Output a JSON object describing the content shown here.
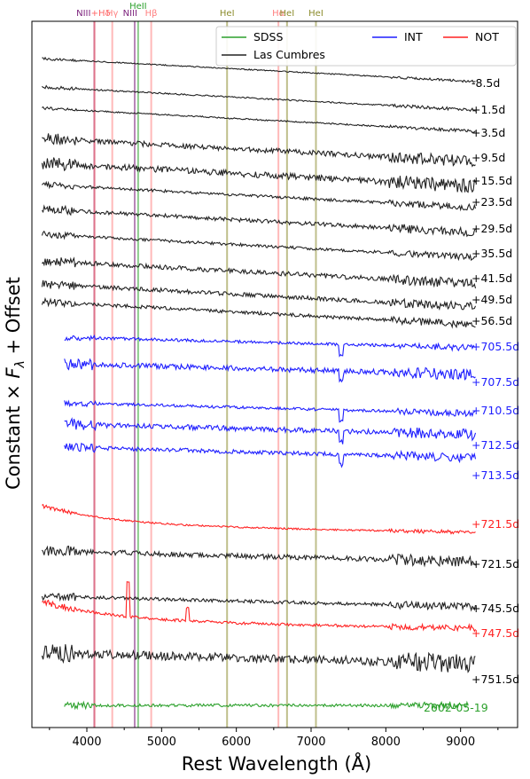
{
  "chart_data": {
    "type": "line",
    "xlabel": "Rest Wavelength (Å)",
    "ylabel": "Constant × F_λ + Offset",
    "ylabel_parts": {
      "pre": "Constant × ",
      "f": "F",
      "sub": "λ",
      "post": " + Offset"
    },
    "xlim": [
      3200,
      9700
    ],
    "x_ticks": [
      4000,
      5000,
      6000,
      7000,
      8000,
      9000
    ],
    "legend_position": "top-right",
    "legend": [
      {
        "name": "SDSS",
        "color": "#2ca02c"
      },
      {
        "name": "INT",
        "color": "#1f1fff"
      },
      {
        "name": "NOT",
        "color": "#ff2222"
      },
      {
        "name": "Las Cumbres",
        "color": "#222222"
      }
    ],
    "line_ids": [
      {
        "label": "NIII",
        "x": 4100,
        "color": "#7b1f7b"
      },
      {
        "label": "+Hδ",
        "x": 4102,
        "color": "#ff6666"
      },
      {
        "label": "Hγ",
        "x": 4340,
        "color": "#ff8080"
      },
      {
        "label": "NIII",
        "x": 4640,
        "color": "#7b1f7b"
      },
      {
        "label": "HeII",
        "x": 4686,
        "color": "#2ca02c"
      },
      {
        "label": "Hβ",
        "x": 4861,
        "color": "#ff8080"
      },
      {
        "label": "HeI",
        "x": 5876,
        "color": "#8b8b2b"
      },
      {
        "label": "Hα",
        "x": 6563,
        "color": "#ff8080"
      },
      {
        "label": "HeI",
        "x": 6678,
        "color": "#8b8b2b"
      },
      {
        "label": "HeI",
        "x": 7065,
        "color": "#8b8b2b"
      }
    ],
    "series": [
      {
        "name": "Las Cumbres",
        "epoch": "-8.5d",
        "x_range": [
          3400,
          9200
        ],
        "noise": 0.4,
        "seed": 11
      },
      {
        "name": "Las Cumbres",
        "epoch": "+1.5d",
        "x_range": [
          3400,
          9200
        ],
        "noise": 0.5,
        "seed": 12
      },
      {
        "name": "Las Cumbres",
        "epoch": "+3.5d",
        "x_range": [
          3400,
          9200
        ],
        "noise": 0.5,
        "seed": 13
      },
      {
        "name": "Las Cumbres",
        "epoch": "+9.5d",
        "x_range": [
          3400,
          9200
        ],
        "noise": 1.8,
        "seed": 14
      },
      {
        "name": "Las Cumbres",
        "epoch": "+15.5d",
        "x_range": [
          3400,
          9200
        ],
        "noise": 2.2,
        "seed": 15
      },
      {
        "name": "Las Cumbres",
        "epoch": "+23.5d",
        "x_range": [
          3400,
          9200
        ],
        "noise": 1.0,
        "seed": 16
      },
      {
        "name": "Las Cumbres",
        "epoch": "+29.5d",
        "x_range": [
          3400,
          9200
        ],
        "noise": 1.4,
        "seed": 17
      },
      {
        "name": "Las Cumbres",
        "epoch": "+35.5d",
        "x_range": [
          3400,
          9200
        ],
        "noise": 1.0,
        "seed": 18
      },
      {
        "name": "Las Cumbres",
        "epoch": "+41.5d",
        "x_range": [
          3400,
          9200
        ],
        "noise": 1.6,
        "seed": 19
      },
      {
        "name": "Las Cumbres",
        "epoch": "+49.5d",
        "x_range": [
          3400,
          9200
        ],
        "noise": 1.4,
        "seed": 20
      },
      {
        "name": "Las Cumbres",
        "epoch": "+56.5d",
        "x_range": [
          3400,
          9200
        ],
        "noise": 1.2,
        "seed": 21
      },
      {
        "name": "INT",
        "epoch": "+705.5d",
        "x_range": [
          3700,
          9200
        ],
        "noise": 1.0,
        "seed": 22
      },
      {
        "name": "INT",
        "epoch": "+707.5d",
        "x_range": [
          3700,
          9200
        ],
        "noise": 1.8,
        "seed": 23
      },
      {
        "name": "INT",
        "epoch": "+710.5d",
        "x_range": [
          3700,
          9200
        ],
        "noise": 1.0,
        "seed": 24
      },
      {
        "name": "INT",
        "epoch": "+712.5d",
        "x_range": [
          3700,
          9200
        ],
        "noise": 1.8,
        "seed": 25
      },
      {
        "name": "INT",
        "epoch": "+713.5d",
        "x_range": [
          3700,
          9200
        ],
        "noise": 1.4,
        "seed": 26
      },
      {
        "name": "NOT",
        "epoch": "+721.5d",
        "x_range": [
          3400,
          9200
        ],
        "noise": 0.6,
        "seed": 27
      },
      {
        "name": "Las Cumbres",
        "epoch": "+721.5d",
        "x_range": [
          3400,
          9200
        ],
        "noise": 1.8,
        "seed": 28
      },
      {
        "name": "Las Cumbres",
        "epoch": "+745.5d",
        "x_range": [
          3400,
          9200
        ],
        "noise": 1.2,
        "seed": 29
      },
      {
        "name": "NOT",
        "epoch": "+747.5d",
        "x_range": [
          3400,
          9200
        ],
        "noise": 1.0,
        "seed": 30
      },
      {
        "name": "Las Cumbres",
        "epoch": "+751.5d",
        "x_range": [
          3400,
          9200
        ],
        "noise": 3.0,
        "seed": 31
      },
      {
        "name": "SDSS",
        "epoch": "2002-05-19",
        "x_range": [
          3700,
          9100
        ],
        "noise": 1.0,
        "seed": 32
      }
    ]
  }
}
